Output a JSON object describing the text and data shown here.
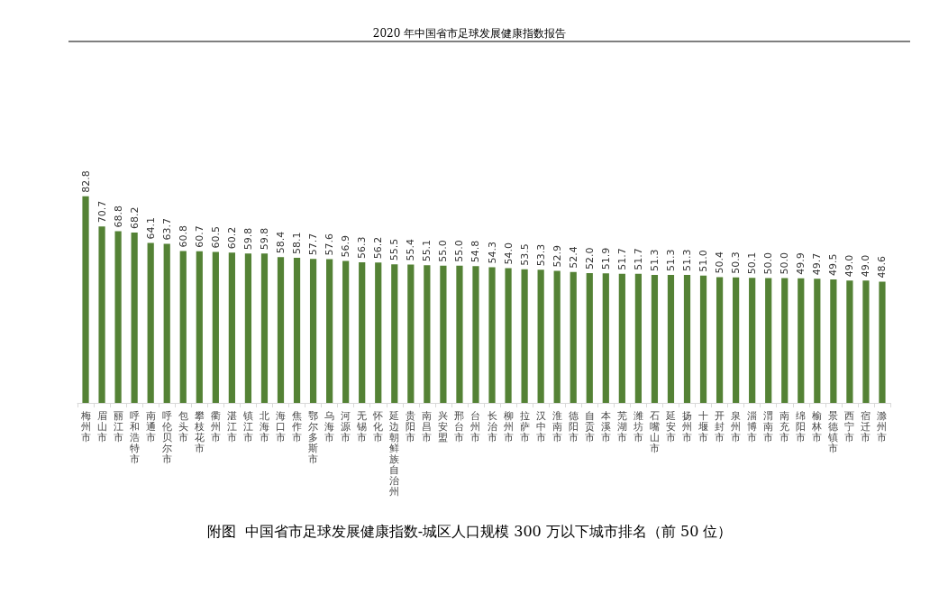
{
  "chart_data": {
    "type": "bar",
    "subtitle": "2020 年中国省市足球发展健康指数报告",
    "title": "附图  中国省市足球发展健康指数-城区人口规模 300 万以下城市排名（前 50 位）",
    "categories": [
      "梅州市",
      "眉山市",
      "丽江市",
      "呼和浩特市",
      "南通市",
      "呼伦贝尔市",
      "包头市",
      "攀枝花市",
      "衢州市",
      "湛江市",
      "镇江市",
      "北海市",
      "海口市",
      "焦作市",
      "鄂尔多斯市",
      "乌海市",
      "河源市",
      "无锡市",
      "怀化市",
      "延边朝鲜族自治州",
      "贵阳市",
      "南昌市",
      "兴安盟",
      "邢台市",
      "台州市",
      "长治市",
      "柳州市",
      "拉萨市",
      "汉中市",
      "淮南市",
      "德阳市",
      "自贡市",
      "本溪市",
      "芜湖市",
      "潍坊市",
      "石嘴山市",
      "延安市",
      "扬州市",
      "十堰市",
      "开封市",
      "泉州市",
      "淄博市",
      "渭南市",
      "南充市",
      "绵阳市",
      "榆林市",
      "景德镇市",
      "西宁市",
      "宿迁市",
      "滁州市"
    ],
    "values": [
      82.8,
      70.7,
      68.8,
      68.2,
      64.1,
      63.7,
      60.8,
      60.7,
      60.5,
      60.2,
      59.8,
      59.8,
      58.4,
      58.1,
      57.7,
      57.6,
      56.9,
      56.3,
      56.2,
      55.5,
      55.4,
      55.1,
      55.0,
      55.0,
      54.8,
      54.3,
      54.0,
      53.5,
      53.3,
      52.9,
      52.4,
      52.0,
      51.9,
      51.7,
      51.7,
      51.3,
      51.3,
      51.3,
      51.0,
      50.4,
      50.3,
      50.1,
      50.0,
      50.0,
      49.9,
      49.7,
      49.5,
      49.0,
      49.0,
      48.6
    ],
    "value_labels": [
      "82.8",
      "70.7",
      "68.8",
      "68.2",
      "64.1",
      "63.7",
      "60.8",
      "60.7",
      "60.5",
      "60.2",
      "59.8",
      "59.8",
      "58.4",
      "58.1",
      "57.7",
      "57.6",
      "56.9",
      "56.3",
      "56.2",
      "55.5",
      "55.4",
      "55.1",
      "55.0",
      "55.0",
      "54.8",
      "54.3",
      "54.0",
      "53.5",
      "53.3",
      "52.9",
      "52.4",
      "52.0",
      "51.9",
      "51.7",
      "51.7",
      "51.3",
      "51.3",
      "51.3",
      "51.0",
      "50.4",
      "50.3",
      "50.1",
      "50.0",
      "50.0",
      "49.9",
      "49.7",
      "49.5",
      "49.0",
      "49.0",
      "48.6"
    ],
    "color": "#548235"
  }
}
